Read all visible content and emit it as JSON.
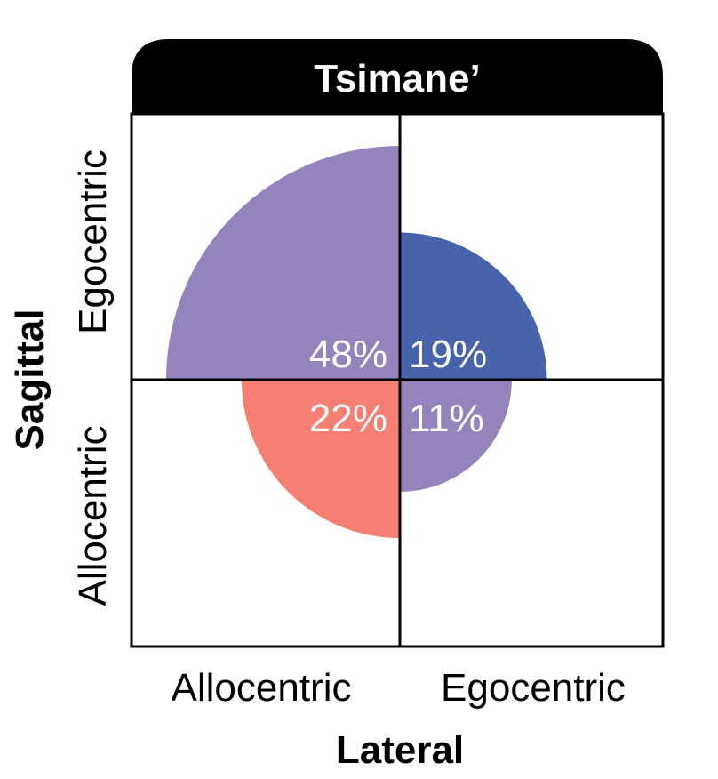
{
  "chart_data": {
    "type": "quadrant-area",
    "title": "Tsimane’",
    "xlabel": "Lateral",
    "ylabel": "Sagittal",
    "x_categories": [
      "Allocentric",
      "Egocentric"
    ],
    "y_categories": [
      "Egocentric",
      "Allocentric"
    ],
    "cells": [
      {
        "lateral": "Allocentric",
        "sagittal": "Egocentric",
        "value": 48,
        "label": "48%",
        "color": "#9583bd"
      },
      {
        "lateral": "Egocentric",
        "sagittal": "Egocentric",
        "value": 19,
        "label": "19%",
        "color": "#4663ac"
      },
      {
        "lateral": "Allocentric",
        "sagittal": "Allocentric",
        "value": 22,
        "label": "22%",
        "color": "#f47f72"
      },
      {
        "lateral": "Egocentric",
        "sagittal": "Allocentric",
        "value": 11,
        "label": "11%",
        "color": "#9583bd"
      }
    ]
  }
}
